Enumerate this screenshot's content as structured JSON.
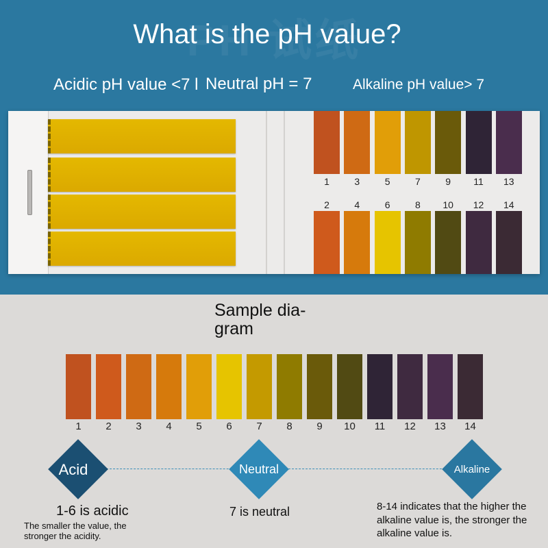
{
  "header": {
    "title": "What is the pH value?",
    "acidic": "Acidic pH value <7 l",
    "neutral": "Neutral pH = 7",
    "alkaline": "Alkaline pH value> 7"
  },
  "chart_row_top": [
    {
      "label": "1",
      "color": "#c0521f"
    },
    {
      "label": "3",
      "color": "#cf6a14"
    },
    {
      "label": "5",
      "color": "#e19e08"
    },
    {
      "label": "7",
      "color": "#bf9600"
    },
    {
      "label": "9",
      "color": "#6a5a0a"
    },
    {
      "label": "11",
      "color": "#2f2436"
    },
    {
      "label": "13",
      "color": "#4a2d4d"
    }
  ],
  "chart_row_bottom": [
    {
      "label": "2",
      "color": "#cf5a1c"
    },
    {
      "label": "4",
      "color": "#d67a0c"
    },
    {
      "label": "6",
      "color": "#e6c400"
    },
    {
      "label": "8",
      "color": "#8f7b00"
    },
    {
      "label": "10",
      "color": "#514a13"
    },
    {
      "label": "12",
      "color": "#3f2a40"
    },
    {
      "label": "14",
      "color": "#3b2a34"
    }
  ],
  "sample": {
    "title": "Sample dia- gram",
    "swatches": [
      {
        "label": "1",
        "color": "#c0521f"
      },
      {
        "label": "2",
        "color": "#cf5a1c"
      },
      {
        "label": "3",
        "color": "#cf6a14"
      },
      {
        "label": "4",
        "color": "#d67a0c"
      },
      {
        "label": "5",
        "color": "#e19e08"
      },
      {
        "label": "6",
        "color": "#e6c400"
      },
      {
        "label": "7",
        "color": "#c49a00"
      },
      {
        "label": "8",
        "color": "#8f7b00"
      },
      {
        "label": "9",
        "color": "#6a5a0a"
      },
      {
        "label": "10",
        "color": "#514a13"
      },
      {
        "label": "11",
        "color": "#2f2436"
      },
      {
        "label": "12",
        "color": "#3f2a40"
      },
      {
        "label": "13",
        "color": "#4a2d4d"
      },
      {
        "label": "14",
        "color": "#3b2a34"
      }
    ]
  },
  "scale": {
    "acid": "Acid",
    "neutral": "Neutral",
    "alkaline": "Alkaline"
  },
  "captions": {
    "acid_main": "1-6 is acidic",
    "acid_sub": "The smaller the value, the stronger the acidity.",
    "neutral": "7 is neutral",
    "alkaline": "8-14 indicates that the higher the alkaline value is, the stronger the alkaline value is."
  }
}
